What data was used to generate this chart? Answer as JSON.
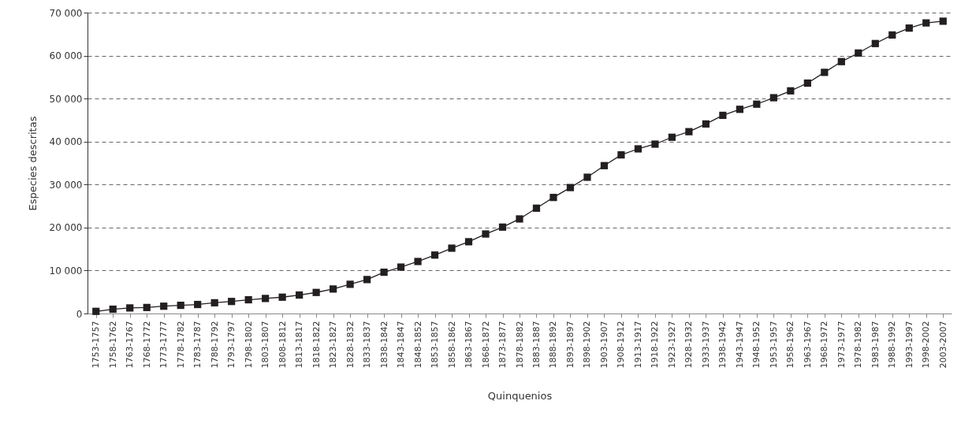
{
  "chart_data": {
    "type": "line",
    "xlabel": "Quinquenios",
    "ylabel": "Especies descritas",
    "categories": [
      "1753-1757",
      "1758-1762",
      "1763-1767",
      "1768-1772",
      "1773-1777",
      "1778-1782",
      "1783-1787",
      "1788-1792",
      "1793-1797",
      "1798-1802",
      "1803-1807",
      "1808-1812",
      "1813-1817",
      "1818-1822",
      "1823-1827",
      "1828-1832",
      "1833-1837",
      "1838-1842",
      "1843-1847",
      "1848-1852",
      "1853-1857",
      "1858-1862",
      "1863-1867",
      "1868-1872",
      "1873-1877",
      "1878-1882",
      "1883-1887",
      "1888-1892",
      "1893-1897",
      "1898-1902",
      "1903-1907",
      "1908-1912",
      "1913-1917",
      "1918-1922",
      "1923-1927",
      "1928-1932",
      "1933-1937",
      "1938-1942",
      "1943-1947",
      "1948-1952",
      "1953-1957",
      "1958-1962",
      "1963-1967",
      "1968-1972",
      "1973-1977",
      "1978-1982",
      "1983-1987",
      "1988-1992",
      "1993-1997",
      "1998-2002",
      "2003-2007"
    ],
    "series": [
      {
        "color": "#231f20",
        "values": [
          500,
          1000,
          1300,
          1400,
          1700,
          1900,
          2100,
          2500,
          2800,
          3200,
          3500,
          3800,
          4300,
          4900,
          5700,
          6800,
          7900,
          9600,
          10800,
          12100,
          13600,
          15200,
          16700,
          18500,
          20100,
          22000,
          24500,
          27000,
          29300,
          31700,
          34400,
          36900,
          38300,
          39400,
          41000,
          42300,
          44100,
          46100,
          47500,
          48700,
          50200,
          51800,
          53600,
          56100,
          58600,
          60600,
          62800,
          64800,
          66400,
          67600,
          68000
        ]
      }
    ],
    "ylim": [
      0,
      70000
    ],
    "yticks": [
      {
        "value": 0,
        "label": "0"
      },
      {
        "value": 10000,
        "label": "10 000"
      },
      {
        "value": 20000,
        "label": "20 000"
      },
      {
        "value": 30000,
        "label": "30 000"
      },
      {
        "value": 40000,
        "label": "40 000"
      },
      {
        "value": 50000,
        "label": "50 000"
      },
      {
        "value": 60000,
        "label": "60 000"
      },
      {
        "value": 70000,
        "label": "70 000"
      }
    ],
    "grid": "y",
    "marker": "square",
    "line_style": "solid"
  }
}
